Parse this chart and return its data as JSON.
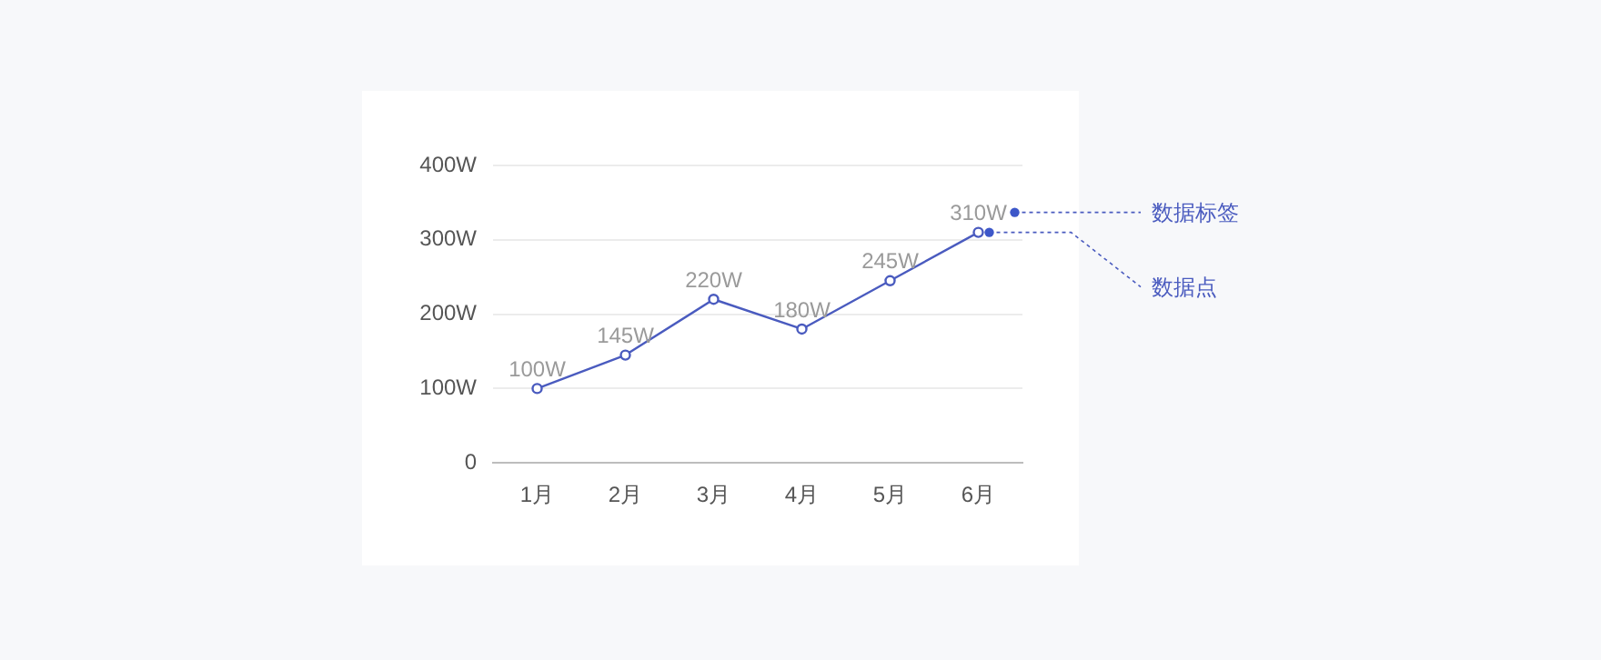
{
  "chart_data": {
    "type": "line",
    "categories": [
      "1月",
      "2月",
      "3月",
      "4月",
      "5月",
      "6月"
    ],
    "series": [
      {
        "color": "#4a5bbf",
        "values": [
          100,
          145,
          220,
          180,
          245,
          310
        ],
        "value_labels": [
          "100W",
          "145W",
          "220W",
          "180W",
          "245W",
          "310W"
        ]
      }
    ],
    "ylim": [
      0,
      400
    ],
    "yticks": [
      {
        "value": 0,
        "label": "0"
      },
      {
        "value": 100,
        "label": "100W"
      },
      {
        "value": 200,
        "label": "200W"
      },
      {
        "value": 300,
        "label": "300W"
      },
      {
        "value": 400,
        "label": "400W"
      }
    ],
    "grid": "y",
    "legend": false,
    "marker": "circle",
    "line_style": "solid",
    "annotations": [
      "数据标签",
      {
        "text": "数据点",
        "x": "6月",
        "y": 310
      }
    ]
  }
}
